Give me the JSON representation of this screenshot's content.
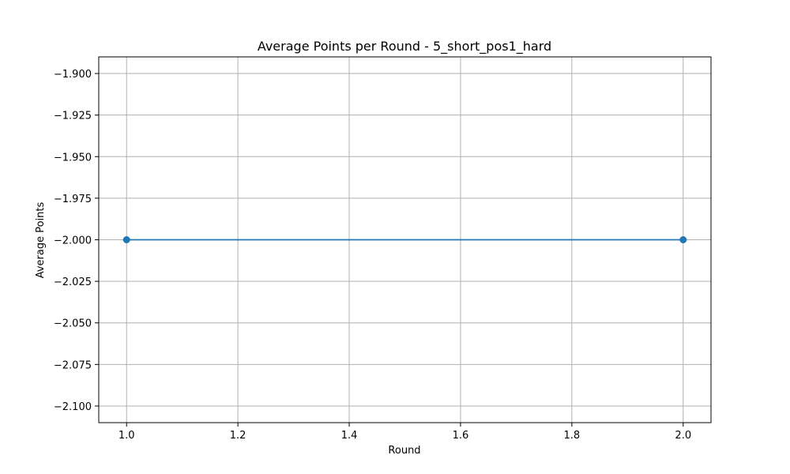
{
  "chart_data": {
    "type": "line",
    "title": "Average Points per Round - 5_short_pos1_hard",
    "xlabel": "Round",
    "ylabel": "Average Points",
    "xlim": [
      0.95,
      2.05
    ],
    "ylim": [
      -2.11,
      -1.89
    ],
    "x_ticks": [
      1.0,
      1.2,
      1.4,
      1.6,
      1.8,
      2.0
    ],
    "x_tick_labels": [
      "1.0",
      "1.2",
      "1.4",
      "1.6",
      "1.8",
      "2.0"
    ],
    "y_ticks": [
      -1.9,
      -1.925,
      -1.95,
      -1.975,
      -2.0,
      -2.025,
      -2.05,
      -2.075,
      -2.1
    ],
    "y_tick_labels": [
      "−1.900",
      "−1.925",
      "−1.950",
      "−1.975",
      "−2.000",
      "−2.025",
      "−2.050",
      "−2.075",
      "−2.100"
    ],
    "grid": true,
    "marker": "circle",
    "series": [
      {
        "x": [
          1,
          2
        ],
        "values": [
          -2.0,
          -2.0
        ],
        "color": "#1f77b4"
      }
    ]
  }
}
